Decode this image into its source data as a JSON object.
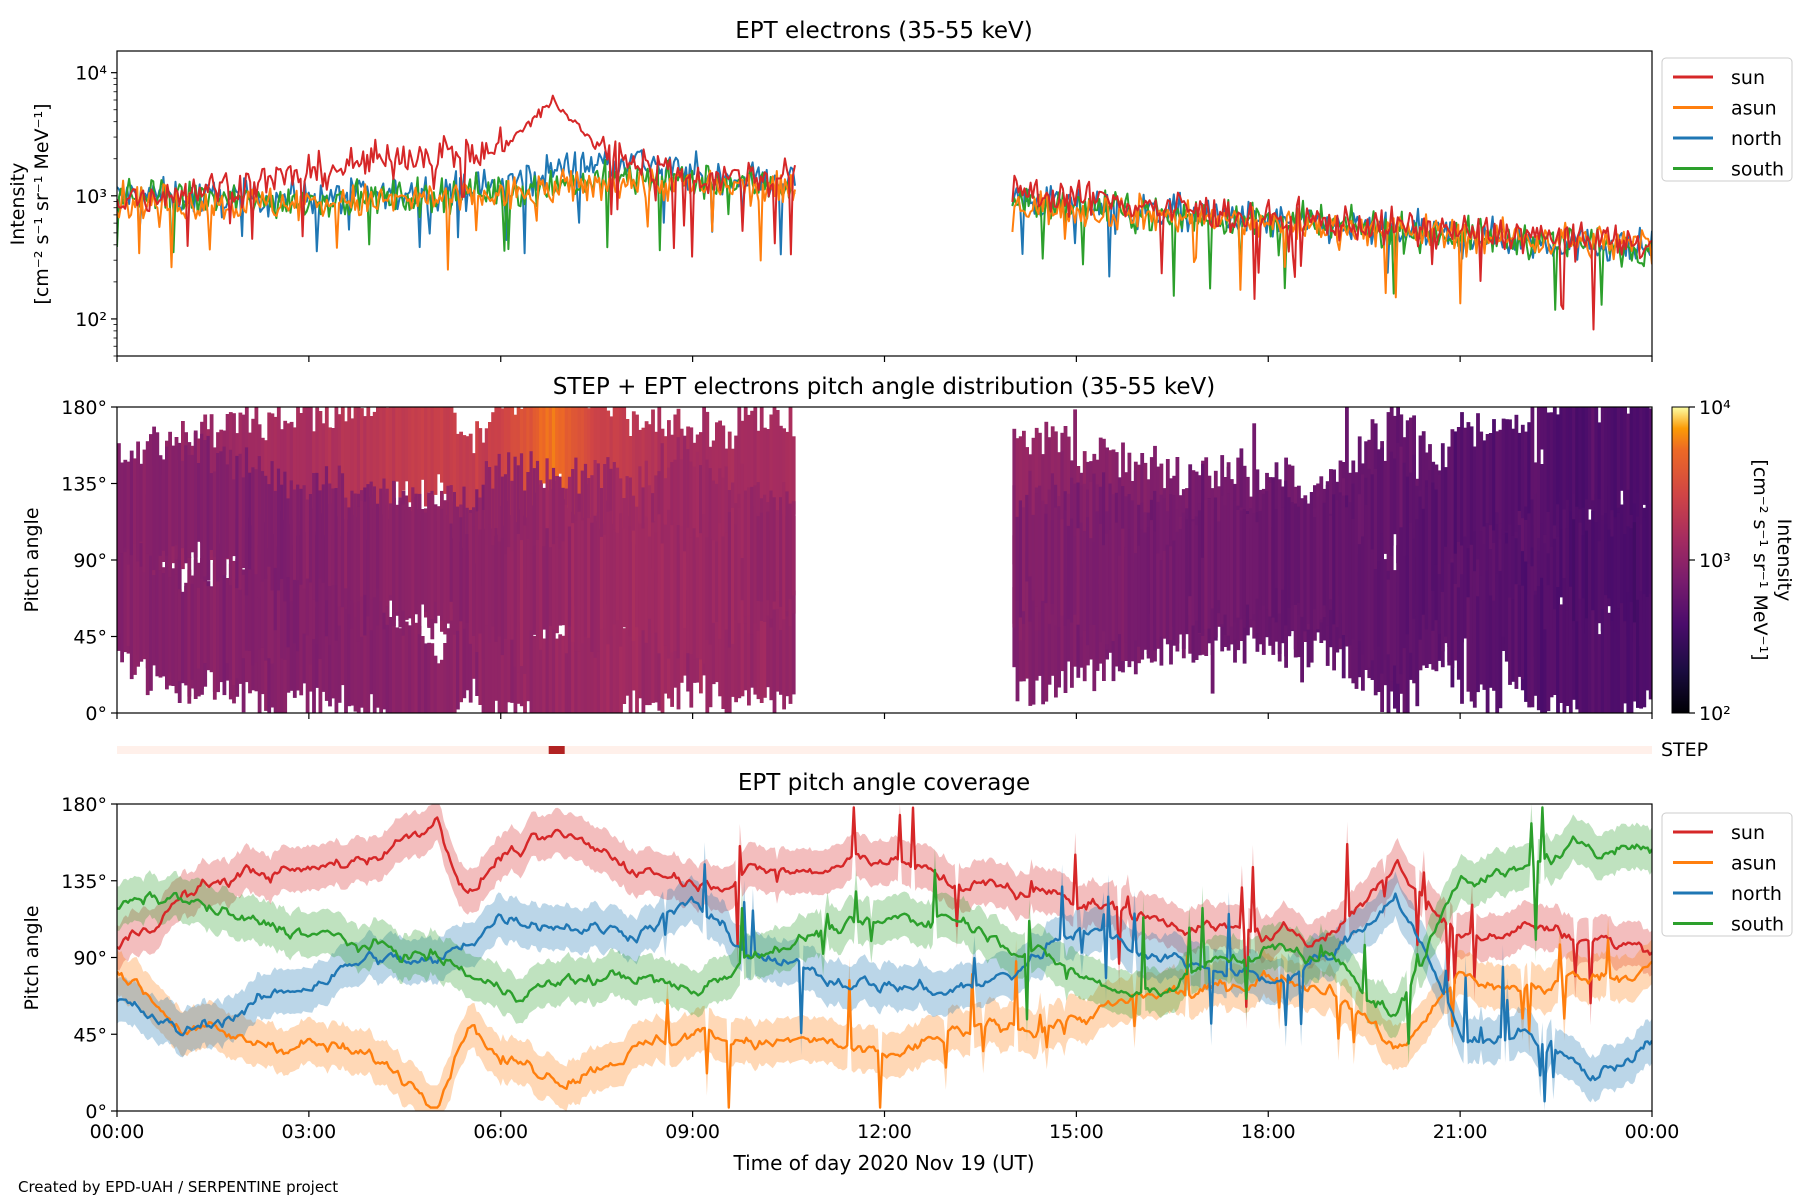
{
  "footer": "Created by EPD-UAH / SERPENTINE project",
  "colors": {
    "sun": "#d62728",
    "asun": "#ff7f0e",
    "north": "#1f77b4",
    "south": "#2ca02c"
  },
  "chart_data": [
    {
      "type": "line",
      "title": "EPT electrons (35-55 keV)",
      "ylabel": [
        "Intensity",
        "[cm⁻² s⁻¹ sr⁻¹ MeV⁻¹]"
      ],
      "y_scale": "log",
      "ylim": [
        50,
        15000
      ],
      "y_ticks": [
        {
          "value": 100,
          "label": "10²"
        },
        {
          "value": 1000,
          "label": "10³"
        },
        {
          "value": 10000,
          "label": "10⁴"
        }
      ],
      "legend": {
        "placement": "outside-right",
        "entries": [
          "sun",
          "asun",
          "north",
          "south"
        ]
      },
      "data_gap_hours": [
        10.6,
        14.0
      ],
      "series": [
        {
          "name": "sun",
          "color": "#d62728",
          "x": [
            0,
            1,
            2,
            3,
            4,
            5,
            5.5,
            6,
            6.5,
            6.8,
            7,
            7.5,
            8,
            9,
            10.5,
            14,
            16,
            18,
            20,
            22,
            24
          ],
          "values": [
            900,
            1100,
            1250,
            1500,
            1900,
            2300,
            2100,
            2400,
            4000,
            6000,
            4500,
            2500,
            2000,
            1400,
            1400,
            1100,
            850,
            650,
            560,
            480,
            400
          ]
        },
        {
          "name": "asun",
          "color": "#ff7f0e",
          "x": [
            0,
            2,
            4,
            6,
            8,
            10.5,
            14,
            16,
            18,
            20,
            22,
            24
          ],
          "values": [
            900,
            850,
            900,
            1000,
            1300,
            1100,
            850,
            720,
            600,
            520,
            450,
            400
          ]
        },
        {
          "name": "north",
          "color": "#1f77b4",
          "x": [
            0,
            2,
            4,
            6,
            7,
            8,
            9,
            10.5,
            14,
            16,
            18,
            20,
            22,
            24
          ],
          "values": [
            1000,
            950,
            1000,
            1200,
            1700,
            2000,
            1500,
            1300,
            950,
            760,
            620,
            520,
            430,
            380
          ]
        },
        {
          "name": "south",
          "color": "#2ca02c",
          "x": [
            0,
            2,
            4,
            6,
            8,
            10.5,
            14,
            16,
            18,
            20,
            22,
            24
          ],
          "values": [
            1000,
            900,
            950,
            1100,
            1400,
            1200,
            900,
            740,
            610,
            520,
            440,
            380
          ]
        }
      ]
    },
    {
      "type": "heatmap",
      "title": "STEP + EPT electrons pitch angle distribution (35-55 keV)",
      "ylabel": "Pitch angle",
      "ylim": [
        0,
        180
      ],
      "y_ticks": [
        "0°",
        "45°",
        "90°",
        "135°",
        "180°"
      ],
      "colorbar": {
        "label": [
          "Intensity",
          "[cm⁻² s⁻¹ sr⁻¹ MeV⁻¹]"
        ],
        "scale": "log",
        "range": [
          100,
          10000
        ],
        "colormap": "inferno",
        "tick_labels": [
          "10²",
          "10³",
          "10⁴"
        ]
      },
      "data_gap_hours": [
        10.6,
        14.0
      ]
    },
    {
      "type": "bar",
      "label": "STEP",
      "note": "STEP coverage strip with a marked interval",
      "segment_hours": [
        6.75,
        7.0
      ],
      "background_color": "#fff0ea",
      "segment_color": "#b22222"
    },
    {
      "type": "line",
      "title": "EPT pitch angle coverage",
      "ylabel": "Pitch angle",
      "ylim": [
        0,
        180
      ],
      "y_ticks": [
        "0°",
        "45°",
        "90°",
        "135°",
        "180°"
      ],
      "legend": {
        "placement": "outside-right",
        "entries": [
          "sun",
          "asun",
          "north",
          "south"
        ]
      },
      "x_ticks": [
        "00:00",
        "03:00",
        "06:00",
        "09:00",
        "12:00",
        "15:00",
        "18:00",
        "21:00",
        "00:00"
      ],
      "xlabel": "Time of day 2020 Nov 19 (UT)",
      "series": [
        {
          "name": "sun",
          "color": "#d62728",
          "x": [
            0,
            1,
            2,
            3,
            4,
            4.5,
            5,
            5.5,
            6,
            7,
            8,
            9,
            10,
            11,
            12,
            13,
            14,
            15,
            16,
            17,
            18,
            19,
            20,
            21,
            22,
            23,
            24
          ],
          "values": [
            95,
            125,
            140,
            140,
            150,
            160,
            172,
            125,
            150,
            160,
            145,
            135,
            140,
            140,
            150,
            135,
            130,
            125,
            115,
            110,
            100,
            105,
            145,
            100,
            110,
            100,
            95
          ]
        },
        {
          "name": "asun",
          "color": "#ff7f0e",
          "x": [
            0,
            1,
            2,
            3,
            4,
            4.5,
            5,
            5.5,
            6,
            7,
            8,
            9,
            10,
            11,
            12,
            13,
            14,
            15,
            16,
            17,
            18,
            19,
            20,
            21,
            22,
            23,
            24
          ],
          "values": [
            85,
            50,
            40,
            40,
            30,
            20,
            8,
            55,
            30,
            20,
            35,
            45,
            40,
            40,
            30,
            45,
            50,
            55,
            65,
            70,
            80,
            75,
            35,
            80,
            70,
            80,
            85
          ]
        },
        {
          "name": "north",
          "color": "#1f77b4",
          "x": [
            0,
            1,
            2,
            3,
            4,
            5,
            6,
            7,
            8,
            9,
            10,
            11,
            12,
            13,
            14,
            15,
            16,
            17,
            18,
            19,
            20,
            21,
            22,
            23,
            24
          ],
          "values": [
            65,
            45,
            60,
            75,
            90,
            85,
            115,
            110,
            105,
            120,
            90,
            80,
            75,
            70,
            80,
            110,
            95,
            85,
            75,
            90,
            130,
            45,
            45,
            20,
            40
          ]
        },
        {
          "name": "south",
          "color": "#2ca02c",
          "x": [
            0,
            1,
            2,
            3,
            4,
            5,
            6,
            7,
            8,
            9,
            10,
            11,
            12,
            13,
            14,
            15,
            16,
            17,
            18,
            19,
            20,
            21,
            22,
            23,
            24
          ],
          "values": [
            120,
            125,
            110,
            105,
            95,
            90,
            70,
            75,
            80,
            70,
            95,
            105,
            110,
            115,
            100,
            80,
            65,
            85,
            95,
            90,
            55,
            140,
            140,
            155,
            155
          ]
        }
      ]
    }
  ]
}
